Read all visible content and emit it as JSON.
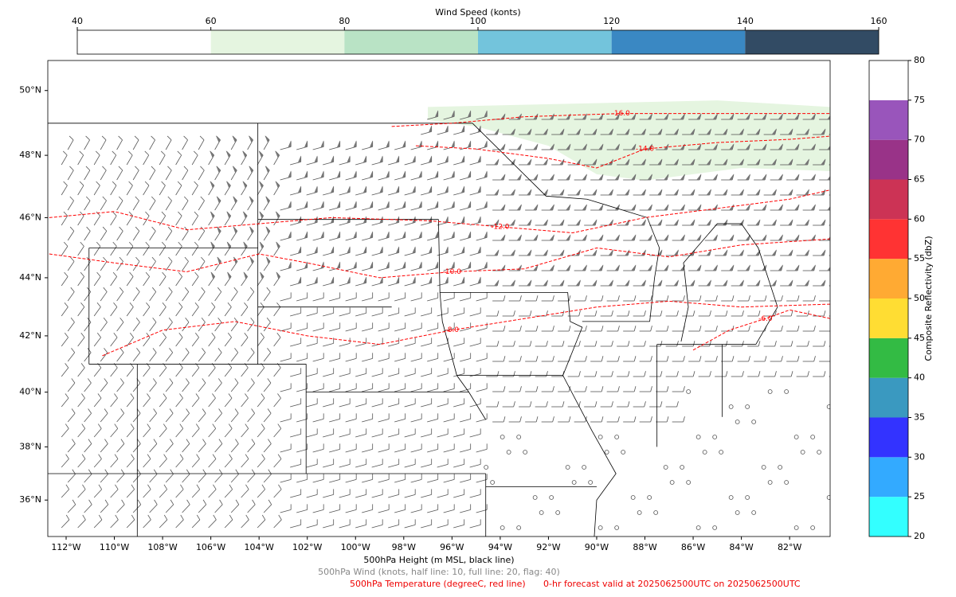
{
  "colorbar_wind": {
    "title": "Wind Speed (konts)",
    "ticks": [
      40,
      60,
      80,
      100,
      120,
      140,
      160
    ],
    "colors": [
      "#ffffff",
      "#e5f5e0",
      "#b9e3c5",
      "#73c4dc",
      "#3a88c3",
      "#324b64"
    ]
  },
  "colorbar_reflectivity": {
    "label": "Composite Reflectivity (dbZ)",
    "ticks": [
      20,
      25,
      30,
      35,
      40,
      45,
      50,
      55,
      60,
      65,
      70,
      75,
      80
    ],
    "colors": [
      "#33ffff",
      "#33aaff",
      "#3333ff",
      "#3a99c0",
      "#33bb44",
      "#ffdd33",
      "#ffaa33",
      "#ff3333",
      "#cc3355",
      "#993388",
      "#9955bb",
      "#ffffff"
    ]
  },
  "map": {
    "projection": "mercator",
    "xlim": [
      -112.76,
      -80.32
    ],
    "ylim": [
      34.6,
      50.9
    ],
    "xticks": [
      {
        "value": -112,
        "label": "112°W"
      },
      {
        "value": -110,
        "label": "110°W"
      },
      {
        "value": -108,
        "label": "108°W"
      },
      {
        "value": -106,
        "label": "106°W"
      },
      {
        "value": -104,
        "label": "104°W"
      },
      {
        "value": -102,
        "label": "102°W"
      },
      {
        "value": -100,
        "label": "100°W"
      },
      {
        "value": -98,
        "label": "98°W"
      },
      {
        "value": -96,
        "label": "96°W"
      },
      {
        "value": -94,
        "label": "94°W"
      },
      {
        "value": -92,
        "label": "92°W"
      },
      {
        "value": -90,
        "label": "90°W"
      },
      {
        "value": -88,
        "label": "88°W"
      },
      {
        "value": -86,
        "label": "86°W"
      },
      {
        "value": -84,
        "label": "84°W"
      },
      {
        "value": -82,
        "label": "82°W"
      }
    ],
    "yticks": [
      {
        "value": 36,
        "label": "36°N"
      },
      {
        "value": 38,
        "label": "38°N"
      },
      {
        "value": 40,
        "label": "40°N"
      },
      {
        "value": 42,
        "label": "42°N"
      },
      {
        "value": 44,
        "label": "44°N"
      },
      {
        "value": 46,
        "label": "46°N"
      },
      {
        "value": 48,
        "label": "48°N"
      },
      {
        "value": 50,
        "label": "50°N"
      }
    ],
    "contour_color": "#ff0000",
    "contours": [
      {
        "level": -16,
        "label": "-16.0",
        "points": [
          [
            -98.5,
            48.9
          ],
          [
            -96,
            49.0
          ],
          [
            -93,
            49.2
          ],
          [
            -89,
            49.3
          ],
          [
            -85,
            49.3
          ],
          [
            -80.3,
            49.3
          ]
        ]
      },
      {
        "level": -14,
        "label": "-14.0",
        "points": [
          [
            -97.5,
            48.3
          ],
          [
            -95,
            48.2
          ],
          [
            -92,
            47.9
          ],
          [
            -90,
            47.6
          ],
          [
            -88,
            48.2
          ],
          [
            -85,
            48.4
          ],
          [
            -82,
            48.5
          ],
          [
            -80.3,
            48.6
          ]
        ]
      },
      {
        "level": -12,
        "label": "-12.0",
        "points": [
          [
            -112.7,
            46.0
          ],
          [
            -110,
            46.2
          ],
          [
            -107,
            45.6
          ],
          [
            -104,
            45.8
          ],
          [
            -101,
            46.0
          ],
          [
            -97,
            45.9
          ],
          [
            -94,
            45.7
          ],
          [
            -91,
            45.5
          ],
          [
            -88,
            46.0
          ],
          [
            -85,
            46.3
          ],
          [
            -82,
            46.6
          ],
          [
            -80.3,
            46.9
          ]
        ]
      },
      {
        "level": -10,
        "label": "-10.0",
        "points": [
          [
            -112.7,
            44.8
          ],
          [
            -110,
            44.5
          ],
          [
            -107,
            44.2
          ],
          [
            -104,
            44.8
          ],
          [
            -102,
            44.5
          ],
          [
            -99,
            44.0
          ],
          [
            -96,
            44.2
          ],
          [
            -93,
            44.3
          ],
          [
            -90,
            45.0
          ],
          [
            -87,
            44.7
          ],
          [
            -84,
            45.1
          ],
          [
            -80.3,
            45.3
          ]
        ]
      },
      {
        "level": -8,
        "label": "-8.0",
        "points": [
          [
            -110.5,
            41.3
          ],
          [
            -108,
            42.2
          ],
          [
            -105,
            42.5
          ],
          [
            -102,
            42.0
          ],
          [
            -99,
            41.7
          ],
          [
            -96,
            42.2
          ],
          [
            -93,
            42.6
          ],
          [
            -90,
            43.0
          ],
          [
            -87,
            43.2
          ],
          [
            -84,
            43.0
          ],
          [
            -80.3,
            43.1
          ]
        ]
      },
      {
        "level": -6,
        "label": "-6.0",
        "points": [
          [
            -86,
            41.5
          ],
          [
            -84.5,
            42.2
          ],
          [
            -83,
            42.6
          ],
          [
            -82,
            42.9
          ],
          [
            -80.3,
            42.6
          ]
        ]
      }
    ]
  },
  "captions": {
    "height": "500hPa Height (m MSL, black line)",
    "wind": "500hPa Wind (knots, half line: 10, full line: 20, flag: 40)",
    "temperature": "500hPa Temperature (degreeC, red line)",
    "valid": "0-hr forecast valid at 2025062500UTC on 2025062500UTC"
  }
}
